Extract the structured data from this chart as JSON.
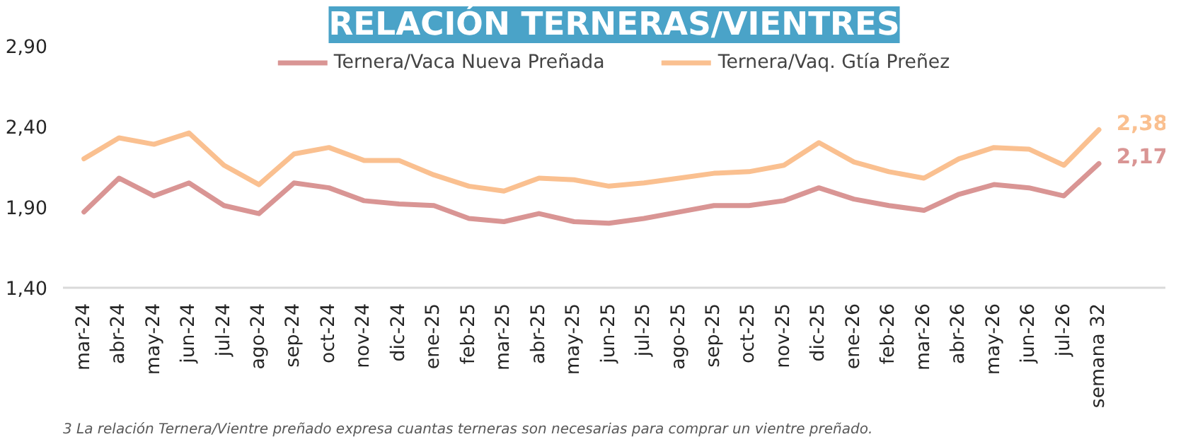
{
  "chart_data": {
    "type": "line",
    "title": "RELACIÓN TERNERAS/VIENTRES",
    "annotations": [
      "3 La relación Ternera/Vientre preñado expresa cuantas terneras son necesarias para comprar un vientre preñado."
    ],
    "categories": [
      "mar-24",
      "abr-24",
      "may-24",
      "jun-24",
      "jul-24",
      "ago-24",
      "sep-24",
      "oct-24",
      "nov-24",
      "dic-24",
      "ene-25",
      "feb-25",
      "mar-25",
      "abr-25",
      "may-25",
      "jun-25",
      "jul-25",
      "ago-25",
      "sep-25",
      "oct-25",
      "nov-25",
      "dic-25",
      "ene-26",
      "feb-26",
      "mar-26",
      "abr-26",
      "may-26",
      "jun-26",
      "jul-26",
      "semana 32"
    ],
    "series": [
      {
        "name": "Ternera/Vaca Nueva Preñada",
        "color": "#d99594",
        "values": [
          1.87,
          2.08,
          1.97,
          2.05,
          1.91,
          1.86,
          2.05,
          2.02,
          1.94,
          1.92,
          1.91,
          1.83,
          1.81,
          1.86,
          1.81,
          1.8,
          1.83,
          1.87,
          1.91,
          1.91,
          1.94,
          2.02,
          1.95,
          1.91,
          1.88,
          1.98,
          2.04,
          2.02,
          1.97,
          2.17
        ],
        "value_labels": [
          null,
          null,
          null,
          null,
          null,
          null,
          null,
          null,
          null,
          null,
          null,
          null,
          null,
          null,
          null,
          null,
          null,
          null,
          null,
          null,
          null,
          null,
          null,
          null,
          null,
          null,
          null,
          null,
          null,
          "2,17"
        ]
      },
      {
        "name": "Ternera/Vaq. Gtía Preñez",
        "color": "#fac090",
        "values": [
          2.2,
          2.33,
          2.29,
          2.36,
          2.16,
          2.04,
          2.23,
          2.27,
          2.19,
          2.19,
          2.1,
          2.03,
          2.0,
          2.08,
          2.07,
          2.03,
          2.05,
          2.08,
          2.11,
          2.12,
          2.16,
          2.3,
          2.18,
          2.12,
          2.08,
          2.2,
          2.27,
          2.26,
          2.16,
          2.38
        ],
        "value_labels": [
          null,
          null,
          null,
          null,
          null,
          null,
          null,
          null,
          null,
          null,
          null,
          null,
          null,
          null,
          null,
          null,
          null,
          null,
          null,
          null,
          null,
          null,
          null,
          null,
          null,
          null,
          null,
          null,
          null,
          "2,38"
        ]
      }
    ],
    "ylim": [
      1.4,
      2.9
    ],
    "yticks": [
      {
        "value": 1.4,
        "label": "1,40"
      },
      {
        "value": 1.9,
        "label": "1,90"
      },
      {
        "value": 2.4,
        "label": "2,40"
      },
      {
        "value": 2.9,
        "label": "2,90"
      }
    ],
    "grid": false,
    "legend": "top",
    "marker": "none",
    "line_style": "solid"
  }
}
